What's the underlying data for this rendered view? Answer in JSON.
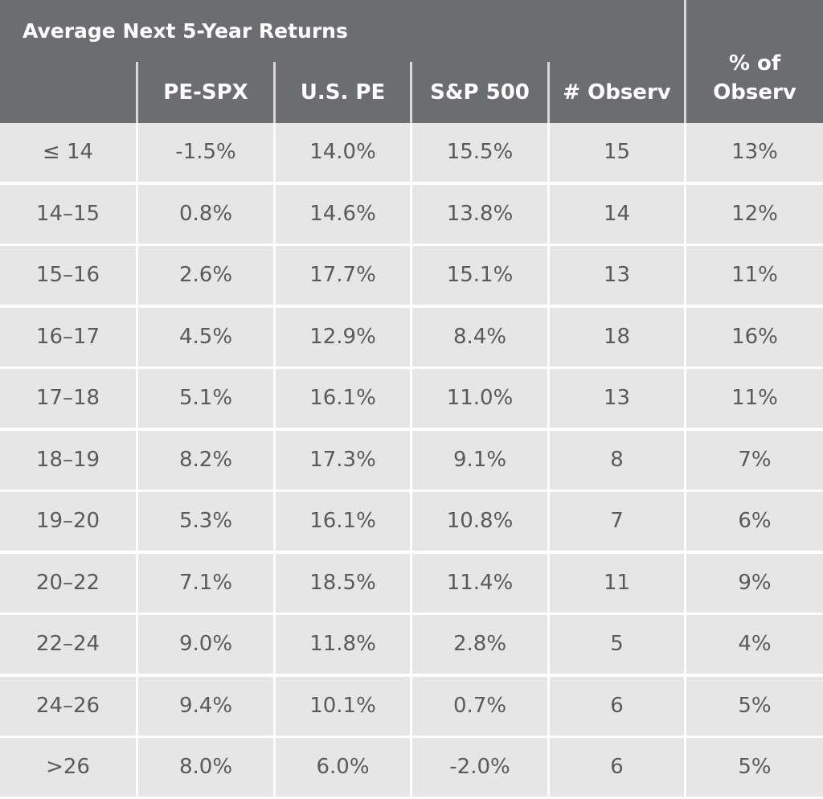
{
  "chart_data": {
    "type": "table",
    "title": "Average Next 5-Year Returns",
    "columns": [
      "",
      "PE-SPX",
      "U.S. PE",
      "S&P 500",
      "# Observ",
      "% of Observ"
    ],
    "column_lines": [
      [
        ""
      ],
      [
        "PE-SPX"
      ],
      [
        "U.S. PE"
      ],
      [
        "S&P 500"
      ],
      [
        "# Observ"
      ],
      [
        "% of",
        "Observ"
      ]
    ],
    "rows": [
      [
        "≤ 14",
        "-1.5%",
        "14.0%",
        "15.5%",
        "15",
        "13%"
      ],
      [
        "14–15",
        "0.8%",
        "14.6%",
        "13.8%",
        "14",
        "12%"
      ],
      [
        "15–16",
        "2.6%",
        "17.7%",
        "15.1%",
        "13",
        "11%"
      ],
      [
        "16–17",
        "4.5%",
        "12.9%",
        "8.4%",
        "18",
        "16%"
      ],
      [
        "17–18",
        "5.1%",
        "16.1%",
        "11.0%",
        "13",
        "11%"
      ],
      [
        "18–19",
        "8.2%",
        "17.3%",
        "9.1%",
        "8",
        "7%"
      ],
      [
        "19–20",
        "5.3%",
        "16.1%",
        "10.8%",
        "7",
        "6%"
      ],
      [
        "20–22",
        "7.1%",
        "18.5%",
        "11.4%",
        "11",
        "9%"
      ],
      [
        "22–24",
        "9.0%",
        "11.8%",
        "2.8%",
        "5",
        "4%"
      ],
      [
        "24–26",
        "9.4%",
        "10.1%",
        "0.7%",
        "6",
        "5%"
      ],
      [
        ">26",
        "8.0%",
        "6.0%",
        "-2.0%",
        "6",
        "5%"
      ]
    ]
  },
  "colors": {
    "header_bg": "#6c6d70",
    "header_text": "#ffffff",
    "cell_bg": "#e6e6e6",
    "cell_text": "#5a5a5a",
    "grid": "#ffffff"
  }
}
